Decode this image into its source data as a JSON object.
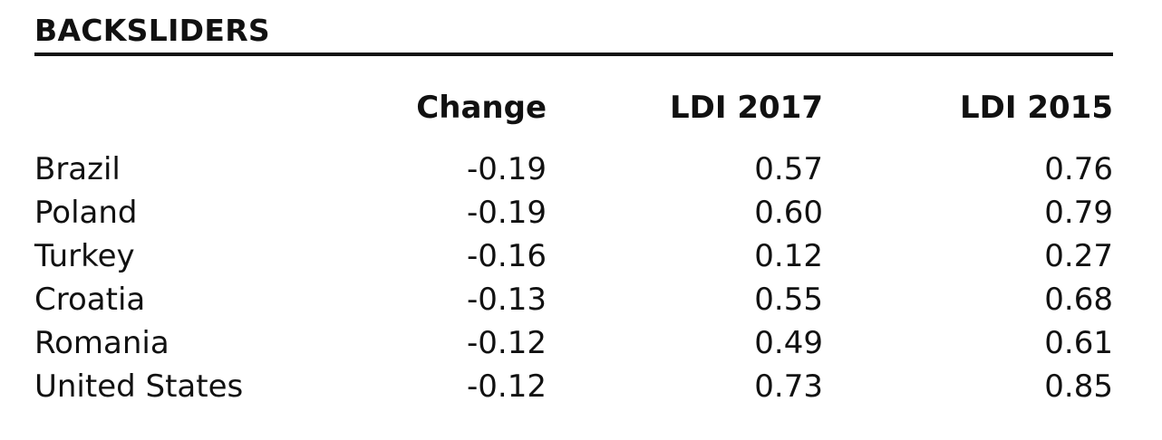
{
  "chart_data": {
    "type": "table",
    "title": "BACKSLIDERS",
    "columns": [
      "",
      "Change",
      "LDI 2017",
      "LDI 2015"
    ],
    "rows": [
      {
        "country": "Brazil",
        "change": "-0.19",
        "ldi_2017": "0.57",
        "ldi_2015": "0.76"
      },
      {
        "country": "Poland",
        "change": "-0.19",
        "ldi_2017": "0.60",
        "ldi_2015": "0.79"
      },
      {
        "country": "Turkey",
        "change": "-0.16",
        "ldi_2017": "0.12",
        "ldi_2015": "0.27"
      },
      {
        "country": "Croatia",
        "change": "-0.13",
        "ldi_2017": "0.55",
        "ldi_2015": "0.68"
      },
      {
        "country": "Romania",
        "change": "-0.12",
        "ldi_2017": "0.49",
        "ldi_2015": "0.61"
      },
      {
        "country": "United States",
        "change": "-0.12",
        "ldi_2017": "0.73",
        "ldi_2015": "0.85"
      }
    ]
  }
}
